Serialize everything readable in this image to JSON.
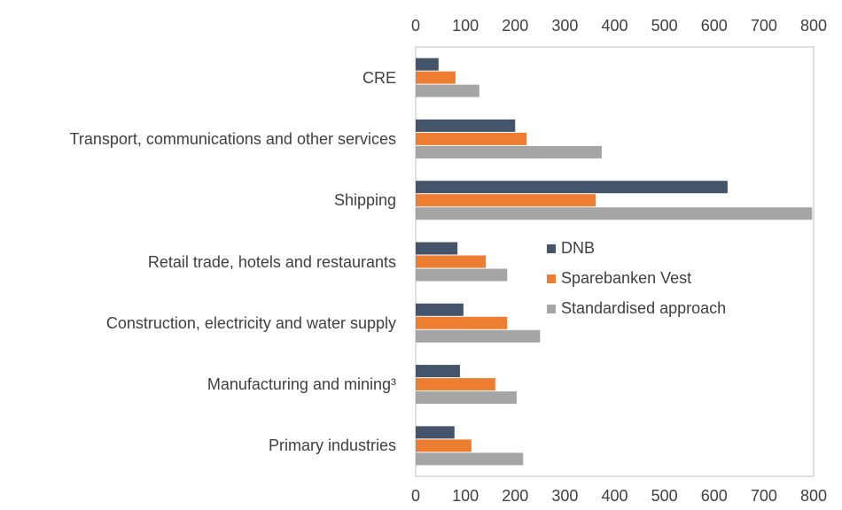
{
  "chart_data": {
    "type": "bar",
    "orientation": "horizontal",
    "categories": [
      "CRE",
      "Transport, communications and other services",
      "Shipping",
      "Retail trade, hotels and restaurants",
      "Construction, electricity and water supply",
      "Manufacturing and mining³",
      "Primary industries"
    ],
    "series": [
      {
        "name": "DNB",
        "color": "#44546a",
        "values": [
          46,
          200,
          627,
          84,
          96,
          89,
          78
        ]
      },
      {
        "name": "Sparebanken Vest",
        "color": "#ed7d31",
        "values": [
          80,
          223,
          362,
          141,
          184,
          160,
          112
        ]
      },
      {
        "name": "Standardised approach",
        "color": "#a5a5a5",
        "values": [
          128,
          374,
          797,
          184,
          250,
          203,
          216
        ]
      }
    ],
    "xlim": [
      0,
      800
    ],
    "xticks": [
      0,
      100,
      200,
      300,
      400,
      500,
      600,
      700,
      800
    ],
    "grid": false,
    "legend": "center right"
  }
}
